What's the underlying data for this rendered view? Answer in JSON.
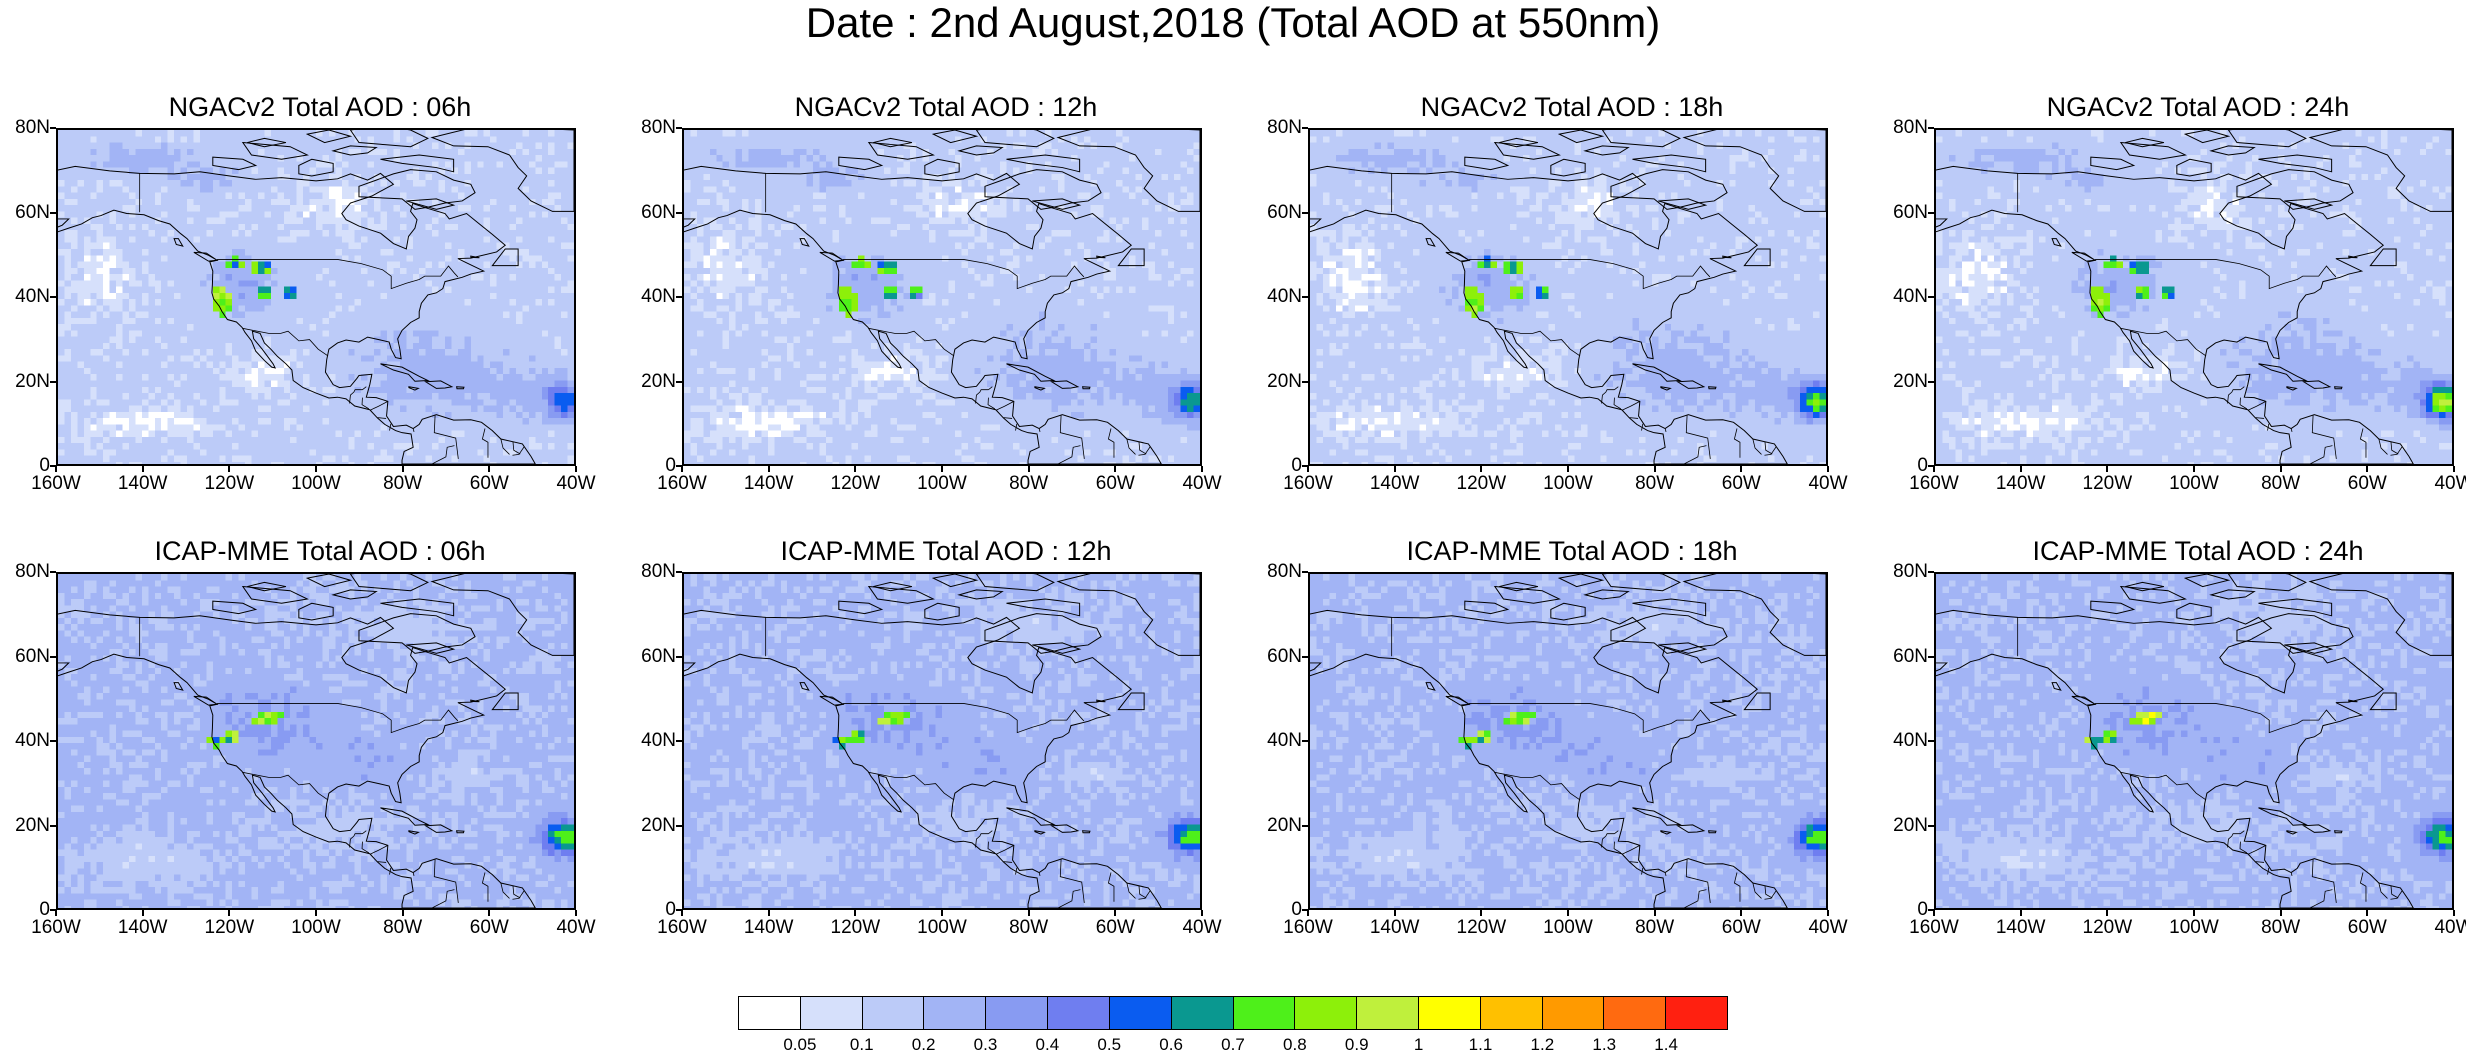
{
  "title": "Date : 2nd August,2018 (Total AOD at 550nm)",
  "panels": [
    {
      "title": "NGACv2 Total AOD : 06h",
      "model": "ngac",
      "lead": "06h"
    },
    {
      "title": "NGACv2 Total AOD : 12h",
      "model": "ngac",
      "lead": "12h"
    },
    {
      "title": "NGACv2 Total AOD : 18h",
      "model": "ngac",
      "lead": "18h"
    },
    {
      "title": "NGACv2 Total AOD : 24h",
      "model": "ngac",
      "lead": "24h"
    },
    {
      "title": "ICAP-MME Total AOD : 06h",
      "model": "icap",
      "lead": "06h"
    },
    {
      "title": "ICAP-MME Total AOD : 12h",
      "model": "icap",
      "lead": "12h"
    },
    {
      "title": "ICAP-MME Total AOD : 18h",
      "model": "icap",
      "lead": "18h"
    },
    {
      "title": "ICAP-MME Total AOD : 24h",
      "model": "icap",
      "lead": "24h"
    }
  ],
  "map_extent": {
    "lon_min": -160,
    "lon_max": -40,
    "lat_min": 0,
    "lat_max": 80
  },
  "lat_ticks": [
    {
      "label": "80N",
      "value": 80
    },
    {
      "label": "60N",
      "value": 60
    },
    {
      "label": "40N",
      "value": 40
    },
    {
      "label": "20N",
      "value": 20
    },
    {
      "label": "0",
      "value": 0
    }
  ],
  "lon_ticks": [
    {
      "label": "160W",
      "value": -160
    },
    {
      "label": "140W",
      "value": -140
    },
    {
      "label": "120W",
      "value": -120
    },
    {
      "label": "100W",
      "value": -100
    },
    {
      "label": "80W",
      "value": -80
    },
    {
      "label": "60W",
      "value": -60
    },
    {
      "label": "40W",
      "value": -40
    }
  ],
  "colorbar": {
    "colors": [
      "#ffffff",
      "#d6e0fb",
      "#bccbf8",
      "#a2b4f5",
      "#889bf2",
      "#6f7ef0",
      "#0a5cf0",
      "#0a9890",
      "#4ef01a",
      "#8df00a",
      "#bff03c",
      "#ffff00",
      "#ffc000",
      "#ff9a00",
      "#ff6a10",
      "#ff2010"
    ],
    "labels": [
      "0.05",
      "0.1",
      "0.2",
      "0.3",
      "0.4",
      "0.5",
      "0.6",
      "0.7",
      "0.8",
      "0.9",
      "1",
      "1.1",
      "1.2",
      "1.3",
      "1.4"
    ]
  }
}
